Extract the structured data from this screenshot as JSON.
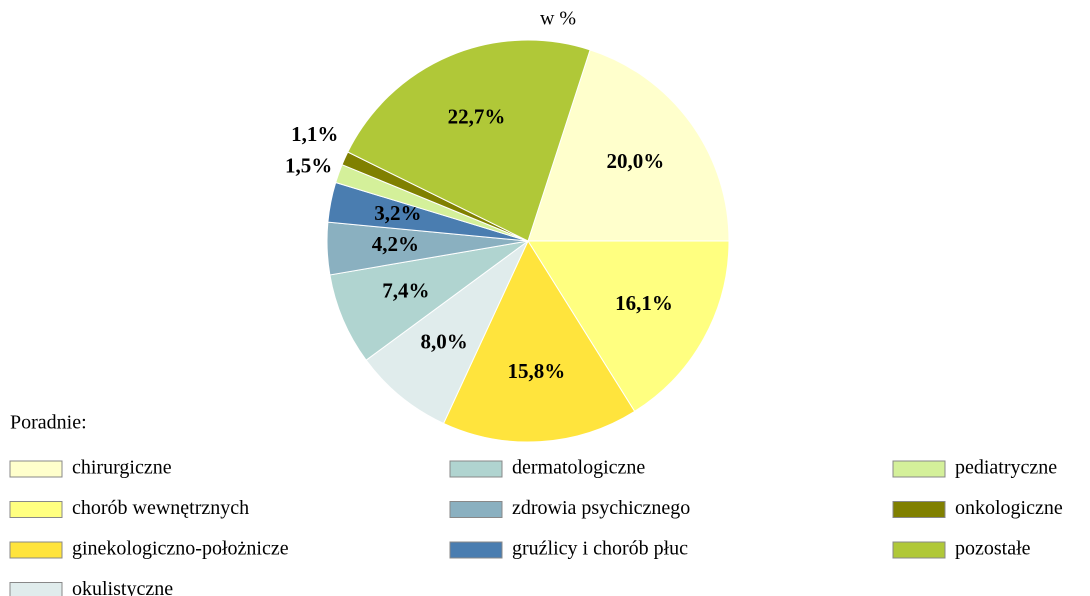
{
  "chart_data": {
    "type": "pie",
    "subtitle": "w %",
    "legend_title": "Poradnie:",
    "categories": [
      "chirurgiczne",
      "chorób wewnętrznych",
      "ginekologiczno-położnicze",
      "okulistyczne",
      "dermatologiczne",
      "zdrowia psychicznego",
      "gruźlicy i chorób płuc",
      "pediatryczne",
      "onkologiczne",
      "pozostałe"
    ],
    "values": [
      20.0,
      16.1,
      15.8,
      8.0,
      7.4,
      4.2,
      3.2,
      1.5,
      1.1,
      22.7
    ],
    "value_labels": [
      "20,0%",
      "16,1%",
      "15,8%",
      "8,0%",
      "7,4%",
      "4,2%",
      "3,2%",
      "1,5%",
      "1,1%",
      "22,7%"
    ],
    "colors": [
      "#ffffcc",
      "#ffff80",
      "#ffe43d",
      "#e0ecec",
      "#b0d4d0",
      "#8ab0c0",
      "#4a7db0",
      "#d4f09a",
      "#808000",
      "#b0c838"
    ]
  }
}
